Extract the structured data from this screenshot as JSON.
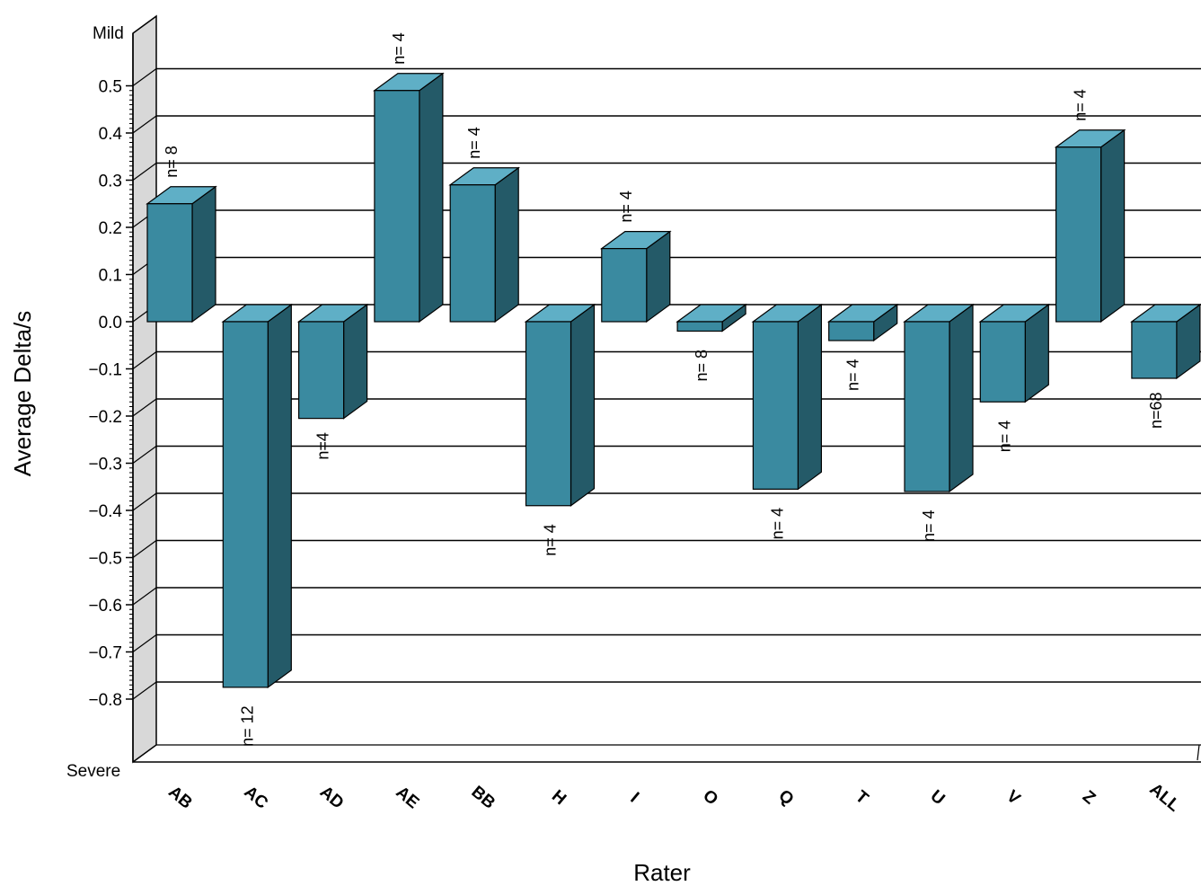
{
  "chart_data": {
    "type": "bar",
    "xlabel": "Rater",
    "ylabel": "Average Delta/s",
    "ylim": [
      -0.8,
      0.5
    ],
    "y_top_label": "Mild",
    "y_bottom_label": "Severe",
    "ticks": [
      "0.5",
      "0.4",
      "0.3",
      "0.2",
      "0.1",
      "0.0",
      "−0.1",
      "−0.2",
      "−0.3",
      "−0.4",
      "−0.5",
      "−0.6",
      "−0.7",
      "−0.8"
    ],
    "grid": true,
    "bar_color": "#3a8aa0",
    "bar_side_color": "#245a68",
    "bar_top_color": "#5fafc6",
    "categories": [
      "AB",
      "AC",
      "AD",
      "AE",
      "BB",
      "H",
      "I",
      "O",
      "Q",
      "T",
      "U",
      "V",
      "Z",
      "ALL"
    ],
    "values": [
      0.25,
      -0.775,
      -0.205,
      0.49,
      0.29,
      -0.39,
      0.155,
      -0.02,
      -0.355,
      -0.04,
      -0.36,
      -0.17,
      0.37,
      -0.12
    ],
    "n_labels": [
      "n= 8",
      "n= 12",
      "n=4",
      "n= 4",
      "n= 4",
      "n= 4",
      "n= 4",
      "n= 8",
      "n= 4",
      "n= 4",
      "n= 4",
      "n= 4",
      "n= 4",
      "n=68"
    ]
  }
}
